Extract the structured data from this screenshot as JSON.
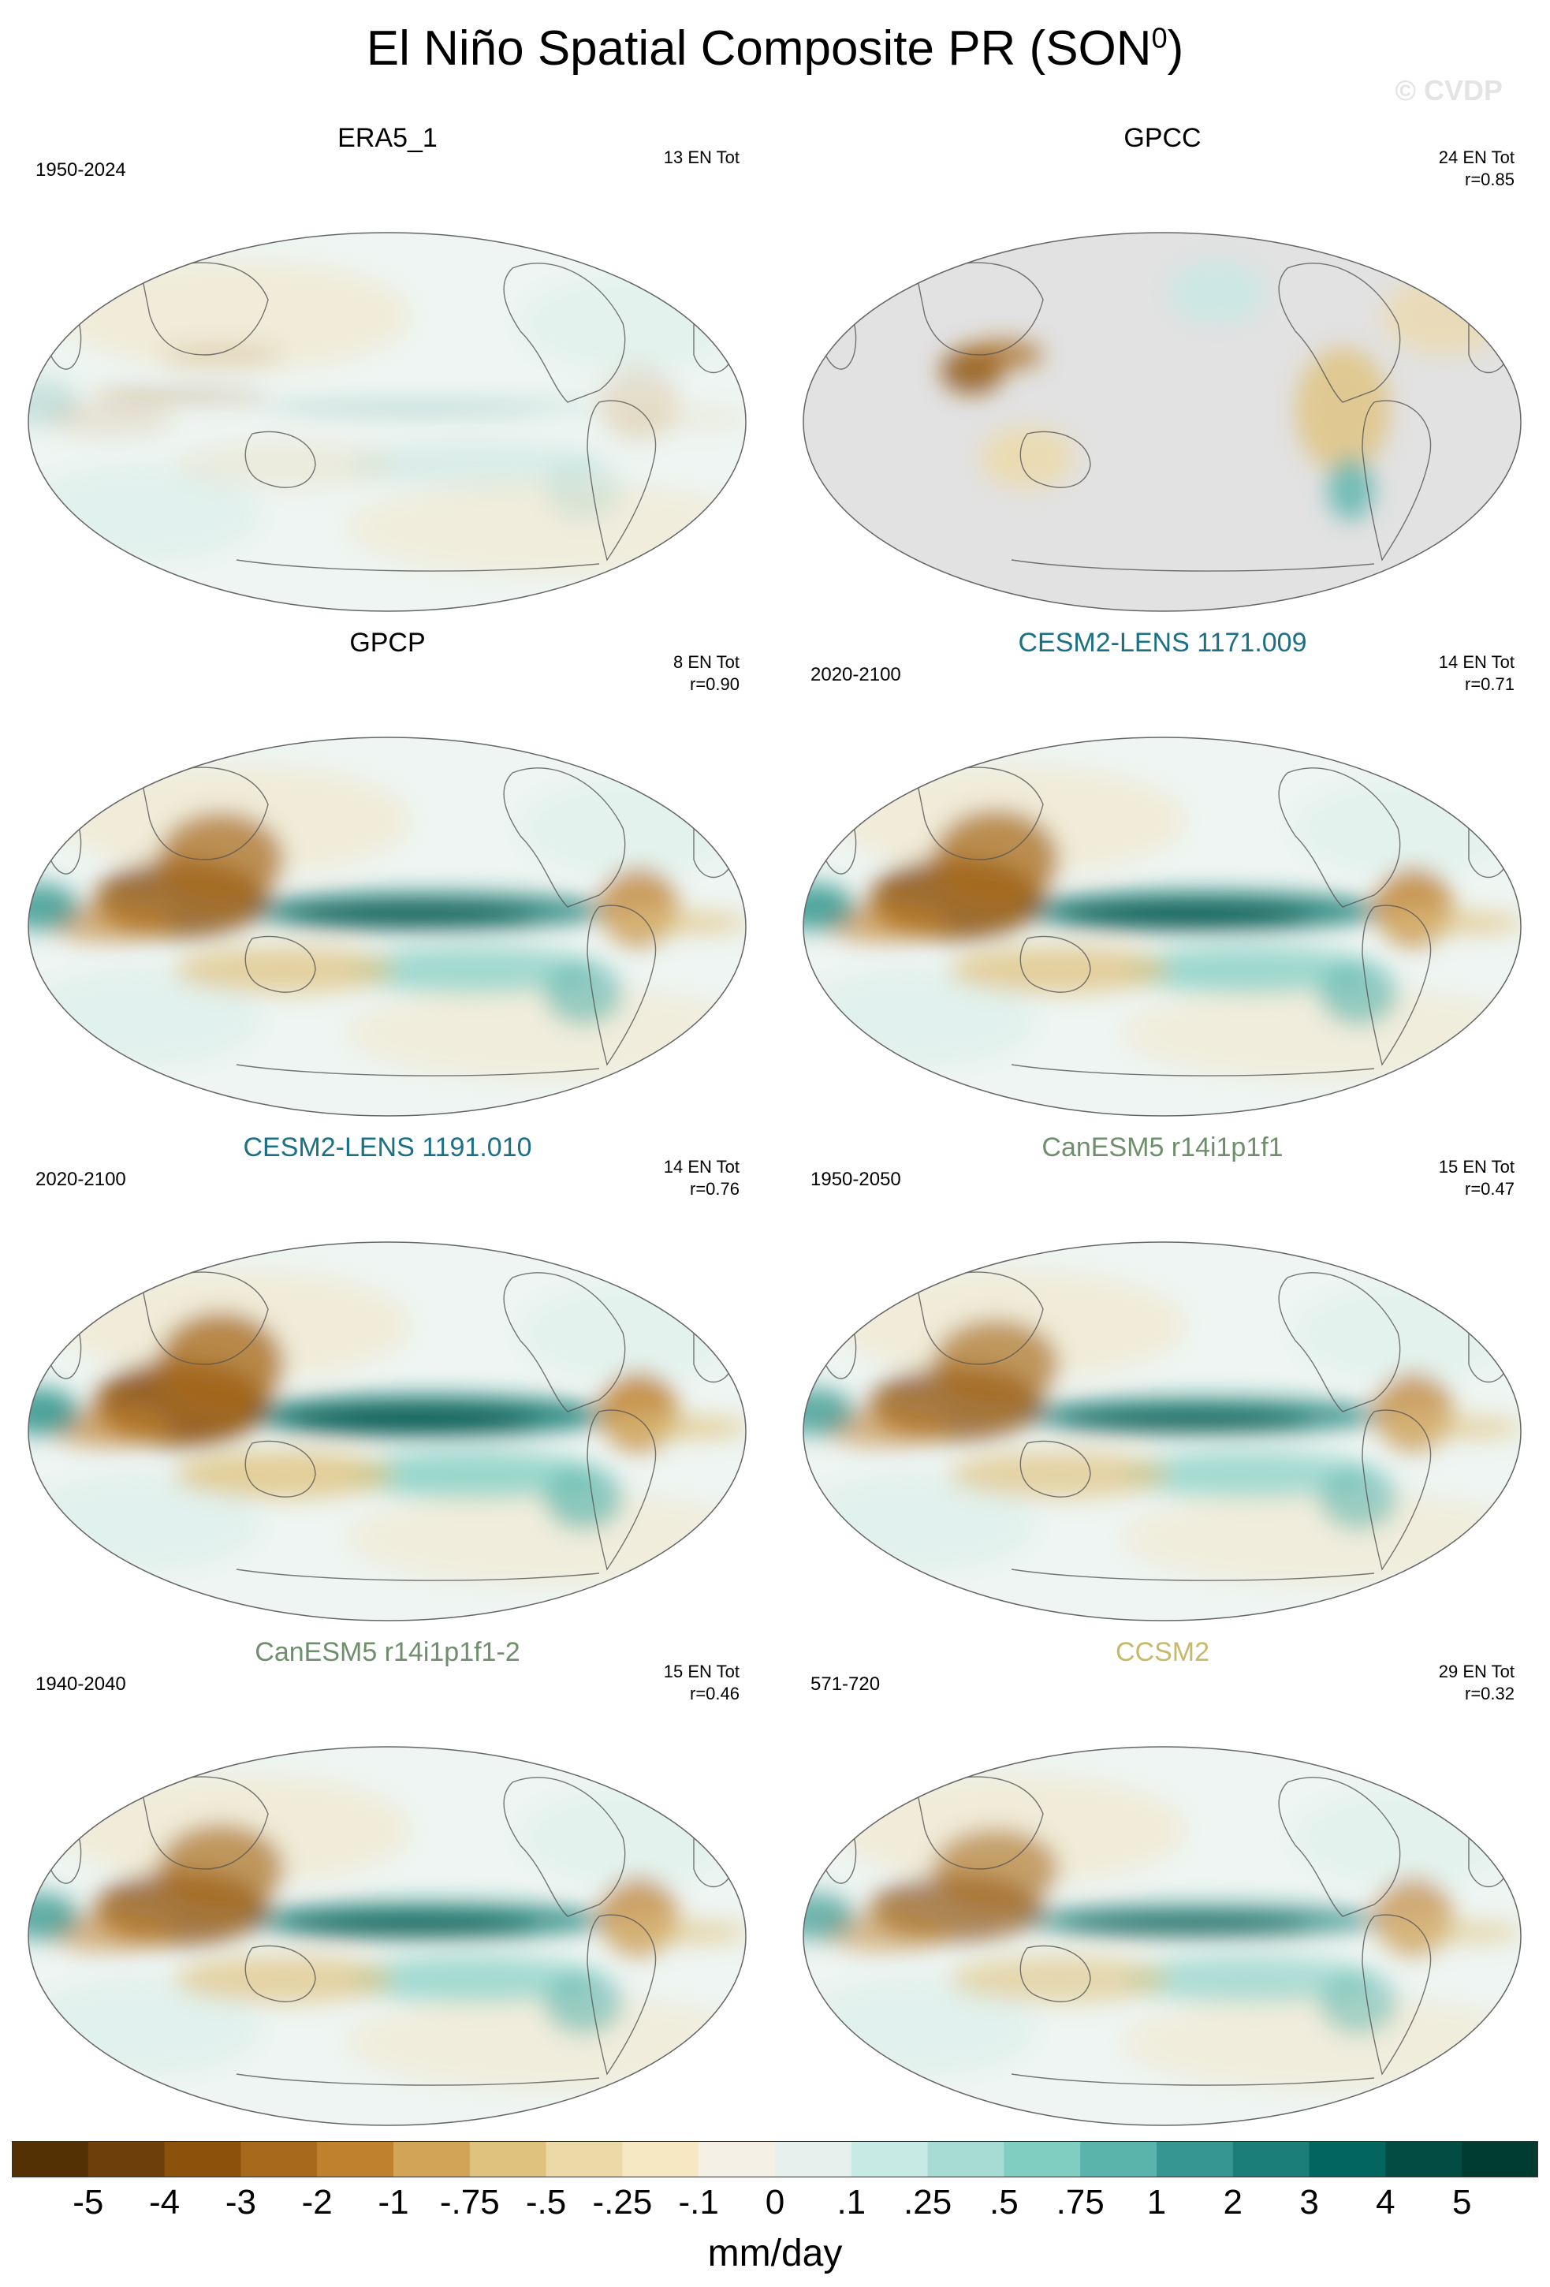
{
  "header": {
    "title": "El Niño Spatial Composite PR (SON",
    "title_sup": "0",
    "title_close": ")",
    "watermark": "© CVDP"
  },
  "panels": [
    {
      "title": "ERA5_1",
      "title_color": "#000000",
      "period": "1950-2024",
      "count": "13 EN Tot",
      "corr": "",
      "strength": 0.25,
      "land_masked": false
    },
    {
      "title": "GPCC",
      "title_color": "#000000",
      "period": "",
      "count": "24 EN Tot",
      "corr": "r=0.85",
      "strength": 0.6,
      "land_masked": true
    },
    {
      "title": "GPCP",
      "title_color": "#000000",
      "period": "",
      "count": "8 EN Tot",
      "corr": "r=0.90",
      "strength": 1.0,
      "land_masked": false
    },
    {
      "title": "CESM2-LENS 1171.009",
      "title_color": "#1b6f86",
      "period": "2020-2100",
      "count": "14 EN Tot",
      "corr": "r=0.71",
      "strength": 1.05,
      "land_masked": false
    },
    {
      "title": "CESM2-LENS 1191.010",
      "title_color": "#1b6f86",
      "period": "2020-2100",
      "count": "14 EN Tot",
      "corr": "r=0.76",
      "strength": 1.1,
      "land_masked": false
    },
    {
      "title": "CanESM5 r14i1p1f1",
      "title_color": "#6f8f6c",
      "period": "1950-2050",
      "count": "15 EN Tot",
      "corr": "r=0.47",
      "strength": 0.95,
      "land_masked": false
    },
    {
      "title": "CanESM5 r14i1p1f1-2",
      "title_color": "#6f8f6c",
      "period": "1940-2040",
      "count": "15 EN Tot",
      "corr": "r=0.46",
      "strength": 0.95,
      "land_masked": false
    },
    {
      "title": "CCSM2",
      "title_color": "#c8b86a",
      "period": "571-720",
      "count": "29 EN Tot",
      "corr": "r=0.32",
      "strength": 0.85,
      "land_masked": false
    }
  ],
  "chart_data": {
    "type": "heatmap",
    "title": "El Niño Spatial Composite PR (SON0)",
    "units": "mm/day",
    "colorbar": {
      "labels": [
        "-5",
        "-4",
        "-3",
        "-2",
        "-1",
        "-.75",
        "-.5",
        "-.25",
        "-.1",
        "0",
        ".1",
        ".25",
        ".5",
        ".75",
        "1",
        "2",
        "3",
        "4",
        "5"
      ],
      "colors": [
        "#543005",
        "#6d3f0a",
        "#8c510a",
        "#a76a1d",
        "#bf812d",
        "#d2a458",
        "#dfc27d",
        "#ecd9a8",
        "#f6e8c3",
        "#f5f0e6",
        "#e6f1ee",
        "#c7eae5",
        "#a6dcd3",
        "#80cdc1",
        "#5ab4ac",
        "#35978f",
        "#1c7f77",
        "#01665e",
        "#024c44",
        "#003c30"
      ]
    }
  }
}
